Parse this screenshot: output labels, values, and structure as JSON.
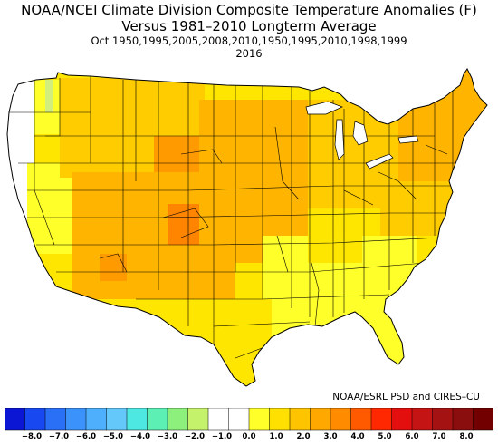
{
  "title": {
    "line1": "NOAA/NCEI Climate Division Composite Temperature Anomalies (F)",
    "line2": "Versus 1981–2010 Longterm Average",
    "line3": "Oct   1950,1995,2005,2008,2010,1950,1995,2010,1998,1999",
    "line4": "2016"
  },
  "credit": "NOAA/ESRL PSD and CIRES–CU",
  "legend": {
    "ticks": [
      "−8.0",
      "−7.0",
      "−6.0",
      "−5.0",
      "−4.0",
      "−3.0",
      "−2.0",
      "−1.0",
      "0.0",
      "1.0",
      "2.0",
      "3.0",
      "4.0",
      "5.0",
      "6.0",
      "7.0",
      "8.0"
    ],
    "colors": [
      "#0a16d4",
      "#1848f0",
      "#2a70f7",
      "#3c92fb",
      "#4eb0fc",
      "#64c8fb",
      "#4ee8e2",
      "#5cf0b4",
      "#8ef07c",
      "#c4f26a",
      "#ffffff",
      "#ffffff",
      "#ffff2a",
      "#ffe000",
      "#ffc400",
      "#ffa800",
      "#ff8c00",
      "#ff5a00",
      "#ff2800",
      "#e30e0e",
      "#c41414",
      "#a51212",
      "#8a0e0e",
      "#720000"
    ]
  },
  "map": {
    "anomaly_colors": {
      "near_zero": "#ffffff",
      "0_to_0.5": "#d2ee7c",
      "0.5_to_1": "#e8f04a",
      "1_to_1.5": "#ffff2a",
      "1.5_to_2": "#ffe600",
      "2_to_2.5": "#ffcc00",
      "2.5_to_3": "#ffb400",
      "3_to_3.5": "#ff9a00",
      "3.5_to_4": "#ff8400"
    },
    "outline_color": "#000000"
  }
}
